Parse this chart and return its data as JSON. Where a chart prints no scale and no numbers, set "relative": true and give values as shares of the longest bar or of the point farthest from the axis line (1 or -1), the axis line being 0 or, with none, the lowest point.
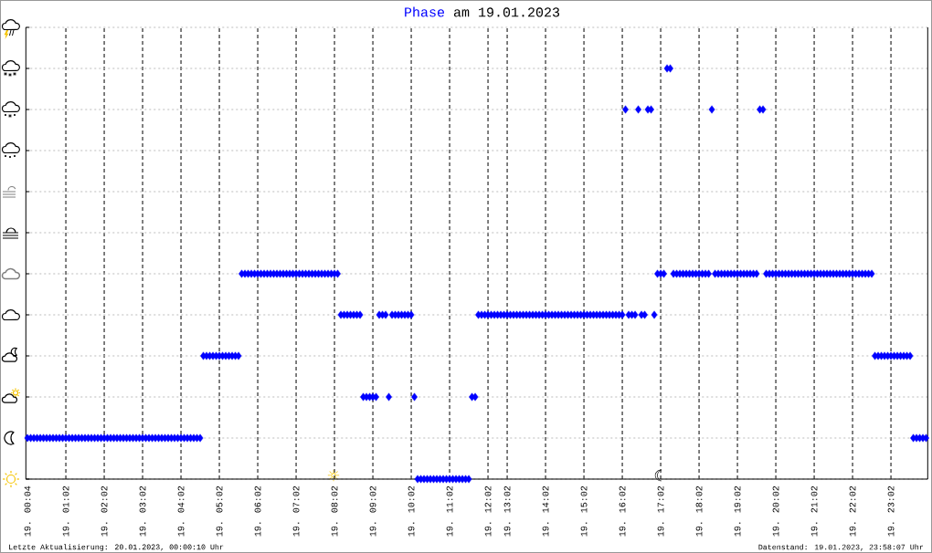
{
  "chart_data": {
    "type": "scatter",
    "title": "Phase am 19.01.2023",
    "relative": true,
    "marker": "diamond",
    "color": "#0000ff",
    "grid": true,
    "categories": [
      "19. 00:04",
      null,
      null,
      null,
      null,
      null,
      null,
      null,
      null,
      null,
      null,
      null,
      "19. 01:02",
      null,
      null,
      null,
      null,
      null,
      null,
      null,
      null,
      null,
      null,
      null,
      "19. 02:02",
      null,
      null,
      null,
      null,
      null,
      null,
      null,
      null,
      null,
      null,
      null,
      "19. 03:02",
      null,
      null,
      null,
      null,
      null,
      null,
      null,
      null,
      null,
      null,
      null,
      "19. 04:02",
      null,
      null,
      null,
      null,
      null,
      null,
      null,
      null,
      null,
      null,
      null,
      "19. 05:02",
      null,
      null,
      null,
      null,
      null,
      null,
      null,
      null,
      null,
      null,
      null,
      "19. 06:02",
      null,
      null,
      null,
      null,
      null,
      null,
      null,
      null,
      null,
      null,
      null,
      "19. 07:02",
      null,
      null,
      null,
      null,
      null,
      null,
      null,
      null,
      null,
      null,
      null,
      "19. 08:02",
      null,
      null,
      null,
      null,
      null,
      null,
      null,
      null,
      null,
      null,
      null,
      "19. 09:02",
      null,
      null,
      null,
      null,
      null,
      null,
      null,
      null,
      null,
      null,
      null,
      "19. 10:02",
      null,
      null,
      null,
      null,
      null,
      null,
      null,
      null,
      null,
      null,
      null,
      "19. 11:02",
      null,
      null,
      null,
      null,
      null,
      null,
      null,
      null,
      null,
      null,
      null,
      "19. 12:02",
      null,
      null,
      null,
      null,
      null,
      "19. 13:02",
      null,
      null,
      null,
      null,
      null,
      null,
      null,
      null,
      null,
      null,
      null,
      "19. 14:02",
      null,
      null,
      null,
      null,
      null,
      null,
      null,
      null,
      null,
      null,
      null,
      "19. 15:02",
      null,
      null,
      null,
      null,
      null,
      null,
      null,
      null,
      null,
      null,
      null,
      "19. 16:02",
      null,
      null,
      null,
      null,
      null,
      null,
      null,
      null,
      null,
      null,
      null,
      "19. 17:02",
      null,
      null,
      null,
      null,
      null,
      null,
      null,
      null,
      null,
      null,
      null,
      "19. 18:02",
      null,
      null,
      null,
      null,
      null,
      null,
      null,
      null,
      null,
      null,
      null,
      "19. 19:02",
      null,
      null,
      null,
      null,
      null,
      null,
      null,
      null,
      null,
      null,
      null,
      "19. 20:02",
      null,
      null,
      null,
      null,
      null,
      null,
      null,
      null,
      null,
      null,
      null,
      "19. 21:02",
      null,
      null,
      null,
      null,
      null,
      null,
      null,
      null,
      null,
      null,
      null,
      "19. 22:02",
      null,
      null,
      null,
      null,
      null,
      null,
      null,
      null,
      null,
      null,
      null,
      "19. 23:02",
      null,
      null,
      null,
      null,
      null,
      null,
      null,
      null,
      null,
      null,
      null
    ],
    "values": [
      0.1,
      0.1,
      0.1,
      0.1,
      0.1,
      0.1,
      0.1,
      0.1,
      0.1,
      0.1,
      0.1,
      0.1,
      0.1,
      0.1,
      0.1,
      0.1,
      0.1,
      0.1,
      0.1,
      0.1,
      0.1,
      0.1,
      0.1,
      0.1,
      0.1,
      0.1,
      0.1,
      0.1,
      0.1,
      0.1,
      0.1,
      0.1,
      0.1,
      0.1,
      0.1,
      0.1,
      0.1,
      0.1,
      0.1,
      0.1,
      0.1,
      0.1,
      0.1,
      0.1,
      0.1,
      0.1,
      0.1,
      0.1,
      0.1,
      0.1,
      0.1,
      0.1,
      0.1,
      0.1,
      0.1,
      0.3,
      0.3,
      0.3,
      0.3,
      0.3,
      0.3,
      0.3,
      0.3,
      0.3,
      0.3,
      0.3,
      0.3,
      0.5,
      0.5,
      0.5,
      0.5,
      0.5,
      0.5,
      0.5,
      0.5,
      0.5,
      0.5,
      0.5,
      0.5,
      0.5,
      0.5,
      0.5,
      0.5,
      0.5,
      0.5,
      0.5,
      0.5,
      0.5,
      0.5,
      0.5,
      0.5,
      0.5,
      0.5,
      0.5,
      0.5,
      0.5,
      0.5,
      0.5,
      0.4,
      0.4,
      0.4,
      0.4,
      0.4,
      0.4,
      0.4,
      0.2,
      0.2,
      0.2,
      0.2,
      0.2,
      0.4,
      0.4,
      0.4,
      0.2,
      0.4,
      0.4,
      0.4,
      0.4,
      0.4,
      0.4,
      0.4,
      0.2,
      0,
      0,
      0,
      0,
      0,
      0,
      0,
      0,
      0,
      0,
      0,
      0,
      0,
      0,
      0,
      0,
      0,
      0.2,
      0.2,
      0.4,
      0.4,
      0.4,
      0.4,
      0.4,
      0.4,
      0.4,
      0.4,
      0.4,
      0.4,
      0.4,
      0.4,
      0.4,
      0.4,
      0.4,
      0.4,
      0.4,
      0.4,
      0.4,
      0.4,
      0.4,
      0.4,
      0.4,
      0.4,
      0.4,
      0.4,
      0.4,
      0.4,
      0.4,
      0.4,
      0.4,
      0.4,
      0.4,
      0.4,
      0.4,
      0.4,
      0.4,
      0.4,
      0.4,
      0.4,
      0.4,
      0.4,
      0.4,
      0.4,
      0.4,
      0.4,
      0.9,
      0.4,
      0.4,
      0.4,
      0.9,
      0.4,
      0.4,
      0.9,
      0.9,
      0.4,
      0.5,
      0.5,
      0.5,
      1,
      1,
      0.5,
      0.5,
      0.5,
      0.5,
      0.5,
      0.5,
      0.5,
      0.5,
      0.5,
      0.5,
      0.5,
      0.5,
      0.9,
      0.5,
      0.5,
      0.5,
      0.5,
      0.5,
      0.5,
      0.5,
      0.5,
      0.5,
      0.5,
      0.5,
      0.5,
      0.5,
      0.5,
      0.9,
      0.9,
      0.5,
      0.5,
      0.5,
      0.5,
      0.5,
      0.5,
      0.5,
      0.5,
      0.5,
      0.5,
      0.5,
      0.5,
      0.5,
      0.5,
      0.5,
      0.5,
      0.5,
      0.5,
      0.5,
      0.5,
      0.5,
      0.5,
      0.5,
      0.5,
      0.5,
      0.5,
      0.5,
      0.5,
      0.5,
      0.5,
      0.5,
      0.5,
      0.5,
      0.5,
      0.3,
      0.3,
      0.3,
      0.3,
      0.3,
      0.3,
      0.3,
      0.3,
      0.3,
      0.3,
      0.3,
      0.3,
      0.1,
      0.1,
      0.1,
      0.1,
      0.1
    ],
    "annotations": [
      "☼",
      "☾",
      "Letzte Aktualisierung: 20.01.2023, 00:00:10 Uhr",
      "Datenstand: 19.01.2023, 23:58:07 Uhr"
    ]
  }
}
